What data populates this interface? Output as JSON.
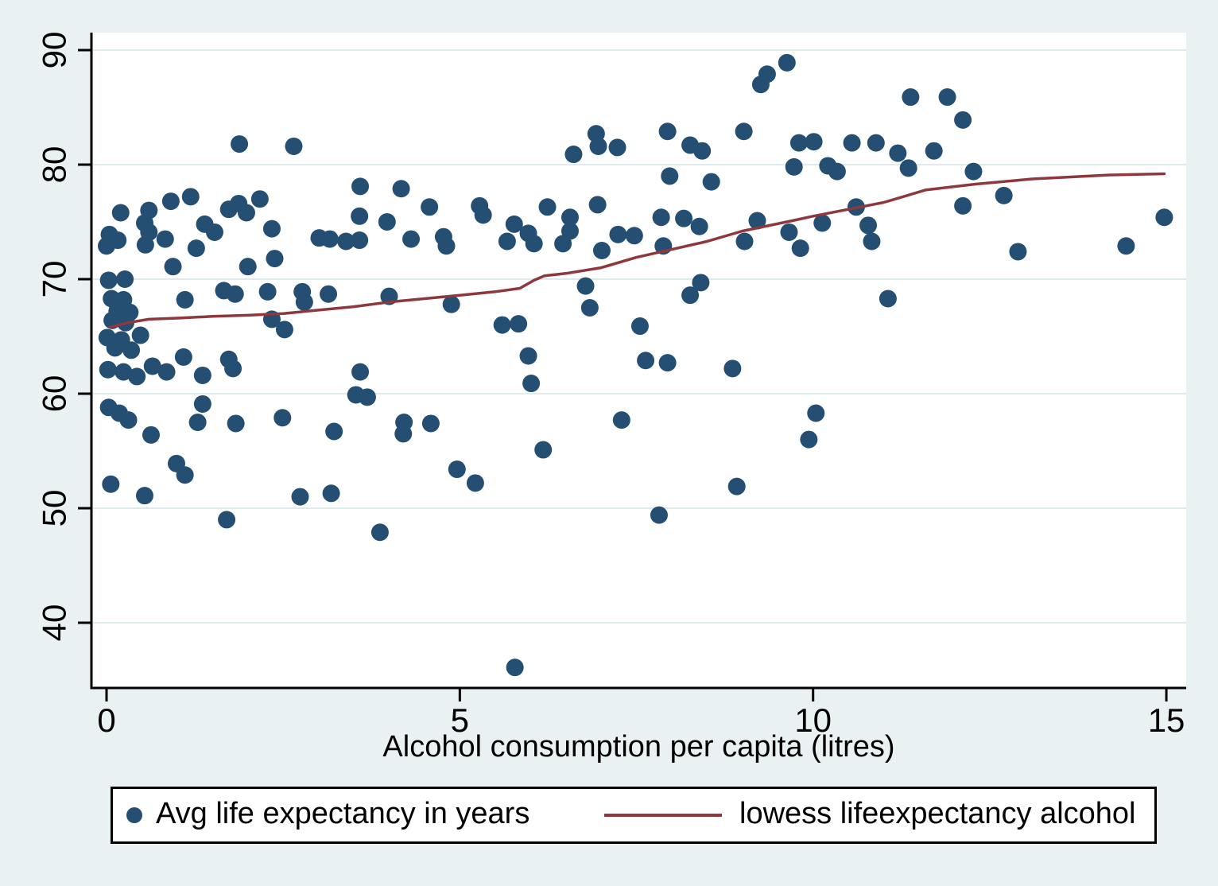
{
  "figure": {
    "x_axis_title": "Alcohol consumption per capita (litres)",
    "legend": {
      "scatter_label": "Avg life expectancy in years",
      "line_label": "lowess lifeexpectancy alcohol"
    },
    "colors": {
      "background": "#eaf1f3",
      "plot_background": "#ffffff",
      "gridline": "#dfeaec",
      "scatter": "#254f72",
      "lowess": "#8e383d",
      "axis": "#000000",
      "text": "#000000"
    }
  },
  "chart_data": {
    "type": "scatter",
    "title": "",
    "xlabel": "Alcohol consumption per capita (litres)",
    "ylabel": "",
    "xlim": [
      0,
      15
    ],
    "ylim": [
      34,
      91.5
    ],
    "xticks": [
      0,
      5,
      10,
      15
    ],
    "yticks": [
      40,
      50,
      60,
      70,
      80,
      90
    ],
    "grid": "horizontal",
    "legend_position": "bottom",
    "series": [
      {
        "name": "Avg life expectancy in years",
        "type": "scatter",
        "points": [
          [
            1.88,
            81.8
          ],
          [
            2.65,
            81.6
          ],
          [
            0.2,
            75.8
          ],
          [
            0.6,
            76.0
          ],
          [
            0.91,
            76.8
          ],
          [
            1.19,
            77.2
          ],
          [
            0.54,
            74.9
          ],
          [
            0.6,
            74.1
          ],
          [
            0.04,
            73.9
          ],
          [
            0.16,
            73.4
          ],
          [
            0.0,
            72.9
          ],
          [
            0.55,
            73.0
          ],
          [
            0.83,
            73.5
          ],
          [
            1.27,
            72.7
          ],
          [
            1.39,
            74.8
          ],
          [
            1.53,
            74.1
          ],
          [
            1.73,
            76.1
          ],
          [
            1.87,
            76.6
          ],
          [
            1.98,
            75.8
          ],
          [
            2.17,
            77.0
          ],
          [
            2.34,
            74.4
          ],
          [
            3.01,
            73.6
          ],
          [
            3.16,
            73.5
          ],
          [
            3.39,
            73.3
          ],
          [
            3.59,
            78.1
          ],
          [
            3.58,
            75.5
          ],
          [
            3.58,
            73.4
          ],
          [
            0.94,
            71.1
          ],
          [
            2.0,
            71.1
          ],
          [
            2.38,
            71.8
          ],
          [
            0.03,
            69.9
          ],
          [
            0.26,
            70.0
          ],
          [
            1.11,
            68.2
          ],
          [
            1.66,
            69.0
          ],
          [
            1.82,
            68.7
          ],
          [
            2.28,
            68.9
          ],
          [
            2.77,
            68.9
          ],
          [
            2.8,
            68.0
          ],
          [
            3.14,
            68.7
          ],
          [
            2.34,
            66.5
          ],
          [
            2.52,
            65.6
          ],
          [
            0.07,
            68.3
          ],
          [
            0.24,
            68.2
          ],
          [
            0.15,
            67.2
          ],
          [
            0.33,
            67.1
          ],
          [
            0.08,
            66.4
          ],
          [
            0.27,
            66.2
          ],
          [
            0.01,
            64.9
          ],
          [
            0.21,
            64.7
          ],
          [
            0.48,
            65.1
          ],
          [
            0.12,
            64.0
          ],
          [
            0.35,
            63.8
          ],
          [
            1.09,
            63.2
          ],
          [
            0.02,
            62.1
          ],
          [
            0.24,
            61.9
          ],
          [
            0.65,
            62.4
          ],
          [
            0.85,
            61.9
          ],
          [
            0.43,
            61.5
          ],
          [
            1.36,
            61.6
          ],
          [
            1.73,
            63.0
          ],
          [
            1.79,
            62.2
          ],
          [
            3.59,
            61.9
          ],
          [
            3.53,
            59.9
          ],
          [
            3.69,
            59.7
          ],
          [
            0.03,
            58.8
          ],
          [
            0.18,
            58.3
          ],
          [
            0.31,
            57.7
          ],
          [
            0.63,
            56.4
          ],
          [
            1.36,
            59.1
          ],
          [
            1.29,
            57.5
          ],
          [
            1.83,
            57.4
          ],
          [
            2.49,
            57.9
          ],
          [
            3.22,
            56.7
          ],
          [
            0.99,
            53.9
          ],
          [
            1.11,
            52.9
          ],
          [
            0.06,
            52.1
          ],
          [
            0.54,
            51.1
          ],
          [
            1.7,
            49.0
          ],
          [
            2.74,
            51.0
          ],
          [
            3.18,
            51.3
          ],
          [
            4.17,
            77.9
          ],
          [
            3.97,
            75.0
          ],
          [
            4.57,
            76.3
          ],
          [
            4.31,
            73.5
          ],
          [
            4.77,
            73.7
          ],
          [
            4.81,
            72.9
          ],
          [
            5.28,
            76.4
          ],
          [
            5.33,
            75.6
          ],
          [
            5.77,
            74.8
          ],
          [
            5.67,
            73.3
          ],
          [
            5.97,
            74.0
          ],
          [
            6.05,
            73.1
          ],
          [
            6.24,
            76.3
          ],
          [
            6.56,
            75.4
          ],
          [
            6.56,
            74.2
          ],
          [
            6.46,
            73.1
          ],
          [
            6.95,
            76.5
          ],
          [
            7.01,
            72.5
          ],
          [
            7.24,
            73.9
          ],
          [
            7.47,
            73.8
          ],
          [
            6.61,
            80.9
          ],
          [
            6.93,
            82.7
          ],
          [
            6.96,
            81.6
          ],
          [
            7.23,
            81.5
          ],
          [
            4.0,
            68.5
          ],
          [
            4.88,
            67.8
          ],
          [
            5.6,
            66.0
          ],
          [
            5.83,
            66.1
          ],
          [
            5.97,
            63.3
          ],
          [
            6.01,
            60.9
          ],
          [
            6.78,
            69.4
          ],
          [
            6.84,
            67.5
          ],
          [
            7.55,
            65.9
          ],
          [
            7.63,
            62.9
          ],
          [
            4.21,
            57.5
          ],
          [
            4.2,
            56.5
          ],
          [
            4.59,
            57.4
          ],
          [
            4.96,
            53.4
          ],
          [
            5.22,
            52.2
          ],
          [
            3.87,
            47.9
          ],
          [
            6.18,
            55.1
          ],
          [
            5.78,
            36.1
          ],
          [
            7.29,
            57.7
          ],
          [
            9.63,
            88.9
          ],
          [
            9.35,
            87.9
          ],
          [
            9.26,
            87.0
          ],
          [
            11.38,
            85.9
          ],
          [
            7.94,
            82.9
          ],
          [
            8.26,
            81.7
          ],
          [
            8.43,
            81.2
          ],
          [
            9.02,
            82.9
          ],
          [
            9.8,
            81.9
          ],
          [
            10.01,
            82.0
          ],
          [
            10.55,
            81.9
          ],
          [
            10.89,
            81.9
          ],
          [
            11.2,
            81.0
          ],
          [
            9.73,
            79.8
          ],
          [
            10.21,
            79.9
          ],
          [
            10.34,
            79.4
          ],
          [
            11.35,
            79.7
          ],
          [
            7.97,
            79.0
          ],
          [
            8.56,
            78.5
          ],
          [
            7.85,
            75.4
          ],
          [
            8.17,
            75.3
          ],
          [
            8.39,
            74.6
          ],
          [
            9.21,
            75.1
          ],
          [
            9.03,
            73.3
          ],
          [
            9.66,
            74.1
          ],
          [
            9.82,
            72.7
          ],
          [
            10.13,
            74.9
          ],
          [
            10.61,
            76.3
          ],
          [
            10.78,
            74.7
          ],
          [
            10.83,
            73.3
          ],
          [
            7.88,
            72.9
          ],
          [
            8.41,
            69.7
          ],
          [
            8.26,
            68.6
          ],
          [
            11.06,
            68.3
          ],
          [
            7.94,
            62.7
          ],
          [
            8.86,
            62.2
          ],
          [
            10.04,
            58.3
          ],
          [
            9.94,
            56.0
          ],
          [
            8.92,
            51.9
          ],
          [
            7.82,
            49.4
          ],
          [
            11.9,
            85.9
          ],
          [
            12.12,
            83.9
          ],
          [
            11.71,
            81.2
          ],
          [
            12.27,
            79.4
          ],
          [
            12.7,
            77.3
          ],
          [
            12.12,
            76.4
          ],
          [
            12.9,
            72.4
          ],
          [
            14.43,
            72.9
          ],
          [
            14.97,
            75.4
          ]
        ]
      },
      {
        "name": "lowess lifeexpectancy alcohol",
        "type": "line",
        "points": [
          [
            0.05,
            65.8
          ],
          [
            0.3,
            66.2
          ],
          [
            0.6,
            66.5
          ],
          [
            1.0,
            66.6
          ],
          [
            1.5,
            66.75
          ],
          [
            2.0,
            66.85
          ],
          [
            2.5,
            67.0
          ],
          [
            3.0,
            67.3
          ],
          [
            3.5,
            67.6
          ],
          [
            4.0,
            68.0
          ],
          [
            4.5,
            68.3
          ],
          [
            5.0,
            68.6
          ],
          [
            5.5,
            68.9
          ],
          [
            5.85,
            69.2
          ],
          [
            6.05,
            69.9
          ],
          [
            6.2,
            70.3
          ],
          [
            6.5,
            70.5
          ],
          [
            7.0,
            71.0
          ],
          [
            7.5,
            71.9
          ],
          [
            8.0,
            72.6
          ],
          [
            8.5,
            73.3
          ],
          [
            9.0,
            74.2
          ],
          [
            9.7,
            75.1
          ],
          [
            10.0,
            75.5
          ],
          [
            10.5,
            76.1
          ],
          [
            11.0,
            76.7
          ],
          [
            11.6,
            77.8
          ],
          [
            12.3,
            78.3
          ],
          [
            13.1,
            78.75
          ],
          [
            14.2,
            79.1
          ],
          [
            14.97,
            79.2
          ]
        ]
      }
    ]
  }
}
